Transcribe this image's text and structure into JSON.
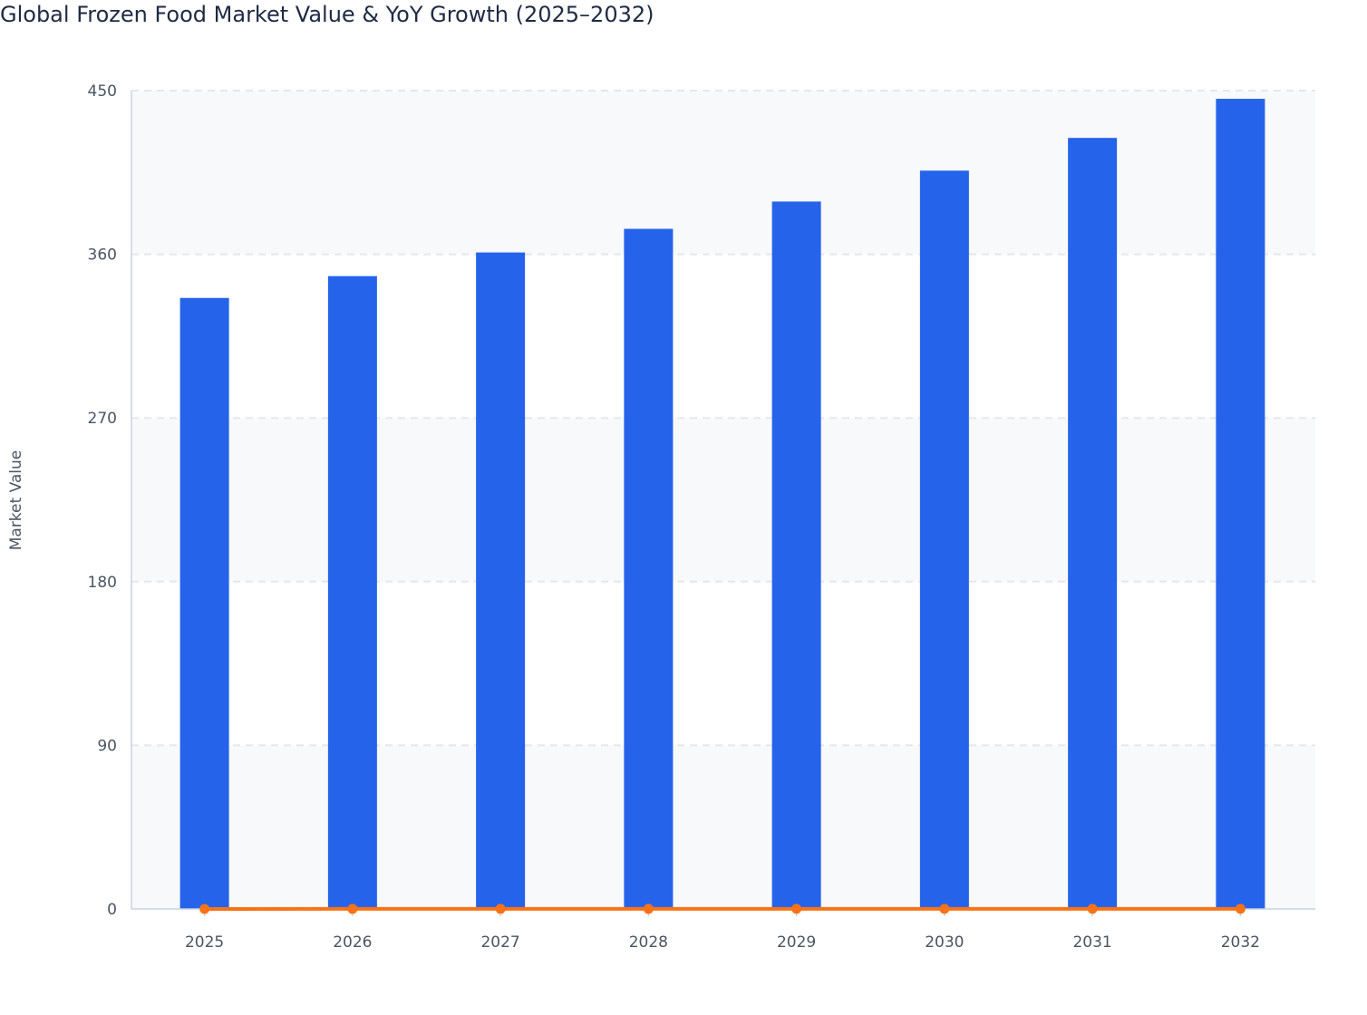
{
  "chart_data": {
    "type": "bar",
    "title": "Global Frozen Food Market Value & YoY Growth (2025–2032)",
    "xlabel": "",
    "ylabel": "Market Value",
    "ylim": [
      0,
      450
    ],
    "yticks": [
      0,
      90,
      180,
      270,
      360,
      450
    ],
    "ytick_labels": [
      "0",
      "90",
      "180",
      "270",
      "360",
      "450"
    ],
    "categories": [
      "2025",
      "2026",
      "2027",
      "2028",
      "2029",
      "2030",
      "2031",
      "2032"
    ],
    "grid": true,
    "legend": "none",
    "series": [
      {
        "type": "bar",
        "color": "#2563eb",
        "values": [
          336,
          348,
          361,
          374,
          389,
          406,
          424,
          445.5
        ]
      },
      {
        "type": "line",
        "color": "#f97316",
        "values": [
          0,
          0.036,
          0.037,
          0.036,
          0.04,
          0.044,
          0.044,
          0.051
        ]
      }
    ],
    "colors": {
      "plot_band": "#f8f9fb",
      "grid": "#e5e7eb",
      "axis": "#c7d2e8"
    }
  }
}
